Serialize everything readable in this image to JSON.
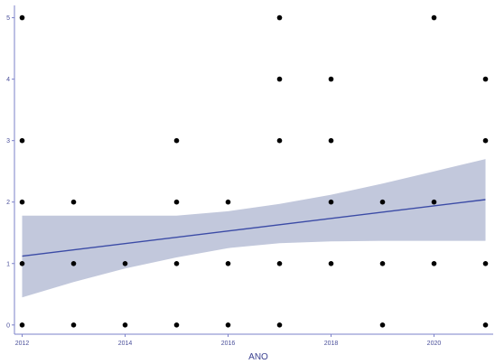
{
  "chart_data": {
    "type": "scatter",
    "title": "",
    "xlabel": "ANO",
    "ylabel": "",
    "xlim": [
      2011.85,
      2021.15
    ],
    "ylim": [
      -0.15,
      5.2
    ],
    "x_ticks": [
      2012,
      2014,
      2016,
      2018,
      2020
    ],
    "y_ticks": [
      0,
      1,
      2,
      3,
      4,
      5
    ],
    "x_tick_labels": [
      "2012",
      "2014",
      "2016",
      "2018",
      "2020"
    ],
    "y_tick_labels": [
      "0",
      "1",
      "2",
      "3",
      "4",
      "5"
    ],
    "grid": false,
    "points": [
      {
        "x": 2012,
        "y": 0
      },
      {
        "x": 2012,
        "y": 1
      },
      {
        "x": 2012,
        "y": 2
      },
      {
        "x": 2012,
        "y": 3
      },
      {
        "x": 2012,
        "y": 5
      },
      {
        "x": 2013,
        "y": 0
      },
      {
        "x": 2013,
        "y": 1
      },
      {
        "x": 2013,
        "y": 2
      },
      {
        "x": 2014,
        "y": 0
      },
      {
        "x": 2014,
        "y": 1
      },
      {
        "x": 2015,
        "y": 0
      },
      {
        "x": 2015,
        "y": 1
      },
      {
        "x": 2015,
        "y": 2
      },
      {
        "x": 2015,
        "y": 3
      },
      {
        "x": 2016,
        "y": 0
      },
      {
        "x": 2016,
        "y": 1
      },
      {
        "x": 2016,
        "y": 2
      },
      {
        "x": 2017,
        "y": 0
      },
      {
        "x": 2017,
        "y": 1
      },
      {
        "x": 2017,
        "y": 3
      },
      {
        "x": 2017,
        "y": 4
      },
      {
        "x": 2017,
        "y": 5
      },
      {
        "x": 2018,
        "y": 1
      },
      {
        "x": 2018,
        "y": 2
      },
      {
        "x": 2018,
        "y": 3
      },
      {
        "x": 2018,
        "y": 4
      },
      {
        "x": 2019,
        "y": 0
      },
      {
        "x": 2019,
        "y": 1
      },
      {
        "x": 2019,
        "y": 2
      },
      {
        "x": 2020,
        "y": 1
      },
      {
        "x": 2020,
        "y": 2
      },
      {
        "x": 2020,
        "y": 5
      },
      {
        "x": 2021,
        "y": 0
      },
      {
        "x": 2021,
        "y": 1
      },
      {
        "x": 2021,
        "y": 3
      },
      {
        "x": 2021,
        "y": 4
      }
    ],
    "trend_line": {
      "method": "linear",
      "x": [
        2012,
        2021
      ],
      "y": [
        1.12,
        2.04
      ]
    },
    "confidence_band": {
      "x": [
        2012,
        2013,
        2014,
        2015,
        2016,
        2017,
        2018,
        2019,
        2020,
        2021
      ],
      "lower": [
        0.45,
        0.7,
        0.92,
        1.1,
        1.25,
        1.33,
        1.36,
        1.37,
        1.37,
        1.37
      ],
      "upper": [
        1.78,
        1.78,
        1.78,
        1.78,
        1.85,
        1.97,
        2.12,
        2.3,
        2.5,
        2.7
      ]
    },
    "colors": {
      "point": "#000000",
      "line": "#3b4ba6",
      "band": "#b7bed6",
      "axis": "#7b80c8",
      "text": "#4a4f9a"
    }
  }
}
